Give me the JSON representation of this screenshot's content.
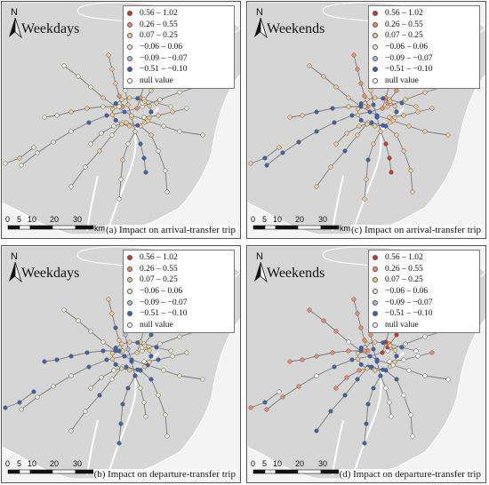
{
  "compass": {
    "label": "N"
  },
  "scale": {
    "ticks": [
      "0",
      "5",
      "10",
      "20",
      "30"
    ],
    "unit": "km"
  },
  "legend": {
    "items": [
      {
        "label": "0.56 – 1.02",
        "color": "#c8372d"
      },
      {
        "label": "0.26 – 0.55",
        "color": "#ed8c5d"
      },
      {
        "label": "0.07 – 0.25",
        "color": "#f2c98f"
      },
      {
        "label": "−0.06 – 0.06",
        "color": "#e8eec9"
      },
      {
        "label": "−0.09 – −0.07",
        "color": "#a6bcdd"
      },
      {
        "label": "−0.51 – −0.10",
        "color": "#3a62ae"
      },
      {
        "label": "null value",
        "color": "#ffffff"
      }
    ]
  },
  "panels": [
    {
      "id": "a",
      "period": "Weekdays",
      "caption": "(a) Impact on arrival-transfer trip",
      "dominant": "Weekdays-arrival"
    },
    {
      "id": "c",
      "period": "Weekends",
      "caption": "(c) Impact on arrival-transfer trip",
      "dominant": "Weekends-arrival"
    },
    {
      "id": "b",
      "period": "Weekdays",
      "caption": "(b) Impact on departure-transfer trip",
      "dominant": "Weekdays-departure"
    },
    {
      "id": "d",
      "period": "Weekends",
      "caption": "(d) Impact on departure-transfer trip",
      "dominant": "Weekends-departure"
    }
  ],
  "colors": {
    "land": "#d6d6d6",
    "water": "#f4f4f4",
    "line": "#7a7a7a"
  }
}
